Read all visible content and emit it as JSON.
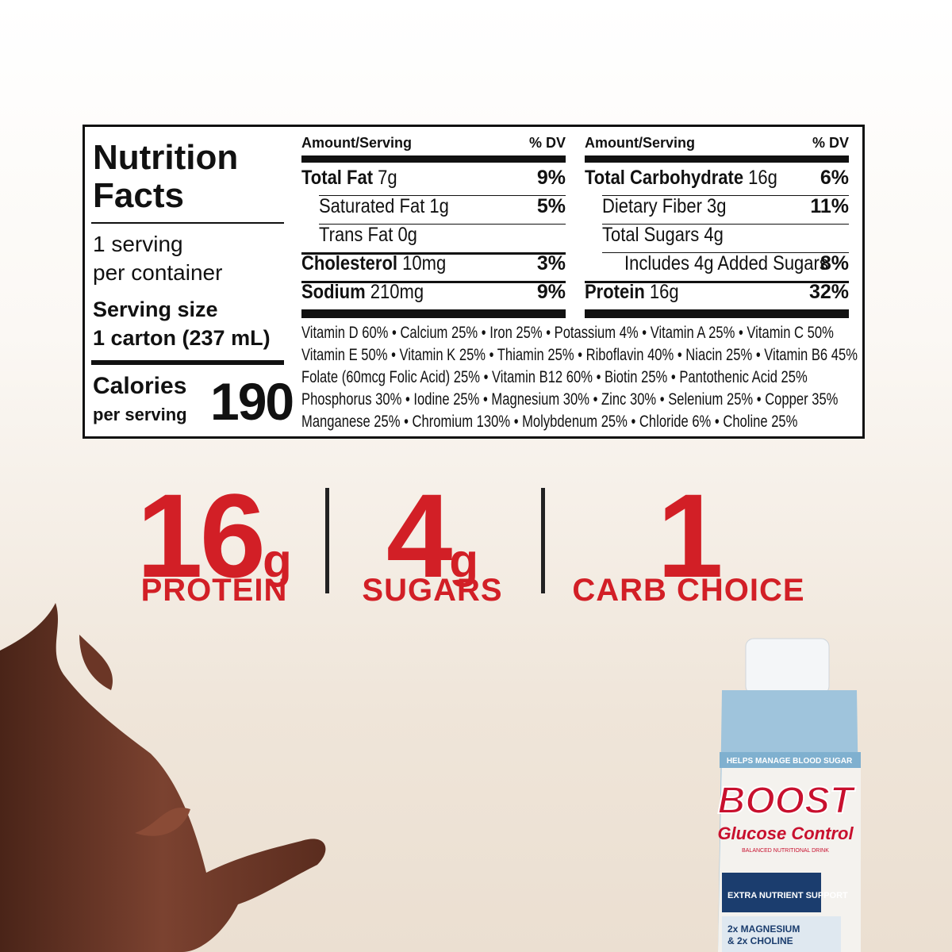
{
  "label": {
    "title_line1": "Nutrition",
    "title_line2": "Facts",
    "servings_line1": "1 serving",
    "servings_line2": "per container",
    "serving_size_label": "Serving size",
    "serving_size": "1 carton (237 mL)",
    "calories_label": "Calories",
    "calories_sub": "per serving",
    "calories": "190",
    "columns": [
      {
        "header_amount": "Amount/Serving",
        "header_dv": "% DV",
        "rows": [
          {
            "name": "Total Fat",
            "amount": "7g",
            "dv": "9%"
          },
          {
            "name": "Saturated Fat",
            "amount": "1g",
            "dv": "5%"
          },
          {
            "name": "Trans Fat",
            "amount": "0g"
          },
          {
            "name": "Cholesterol",
            "amount": "10mg",
            "dv": "3%"
          },
          {
            "name": "Sodium",
            "amount": "210mg",
            "dv": "9%"
          }
        ]
      },
      {
        "header_amount": "Amount/Serving",
        "header_dv": "% DV",
        "rows": [
          {
            "name": "Total Carbohydrate",
            "amount": "16g",
            "dv": "6%"
          },
          {
            "name": "Dietary Fiber",
            "amount": "3g",
            "dv": "11%"
          },
          {
            "name": "Total Sugars",
            "amount": "4g"
          },
          {
            "name": "Includes 4g Added Sugars",
            "dv": "8%"
          },
          {
            "name": "Protein",
            "amount": "16g",
            "dv": "32%"
          }
        ]
      }
    ],
    "vitamins": [
      "Vitamin D 60% • Calcium 25% • Iron 25% • Potassium 4% • Vitamin A 25% • Vitamin C 50%",
      "Vitamin E 50% • Vitamin K 25% • Thiamin 25% • Riboflavin 40% • Niacin 25% • Vitamin B6 45%",
      "Folate (60mcg Folic Acid) 25% • Vitamin B12 60% • Biotin 25% • Pantothenic Acid 25%",
      "Phosphorus 30% • Iodine 25% • Magnesium 30% • Zinc 30% • Selenium 25% • Copper 35%",
      "Manganese 25% • Chromium 130% • Molybdenum 25% • Chloride 6% • Choline 25%"
    ]
  },
  "highlights": [
    {
      "value": "16",
      "unit": "g",
      "label": "PROTEIN"
    },
    {
      "value": "4",
      "unit": "g",
      "label": "SUGARS"
    },
    {
      "value": "1",
      "label": "CARB CHOICE"
    }
  ],
  "carton": {
    "banner": "HELPS MANAGE BLOOD SUGAR",
    "brand": "BOOST",
    "product": "Glucose Control",
    "tagline": "BALANCED NUTRITIONAL DRINK",
    "badge": "EXTRA NUTRIENT SUPPORT",
    "claim1": "2x MAGNESIUM",
    "claim2": "& 2x CHOLINE"
  }
}
